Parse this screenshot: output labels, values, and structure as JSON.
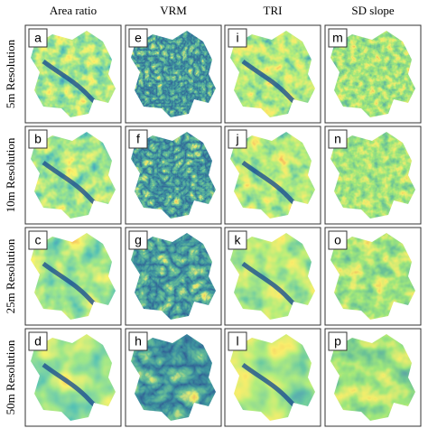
{
  "columns": [
    "Area ratio",
    "VRM",
    "TRI",
    "SD slope"
  ],
  "rows": [
    {
      "label": "5m Resolution",
      "panels": [
        "a",
        "e",
        "i",
        "m"
      ]
    },
    {
      "label": "10m Resolution",
      "panels": [
        "b",
        "f",
        "j",
        "n"
      ]
    },
    {
      "label": "25m Resolution",
      "panels": [
        "c",
        "g",
        "k",
        "o"
      ]
    },
    {
      "label": "50m Resolution",
      "panels": [
        "d",
        "h",
        "l",
        "p"
      ]
    }
  ]
}
